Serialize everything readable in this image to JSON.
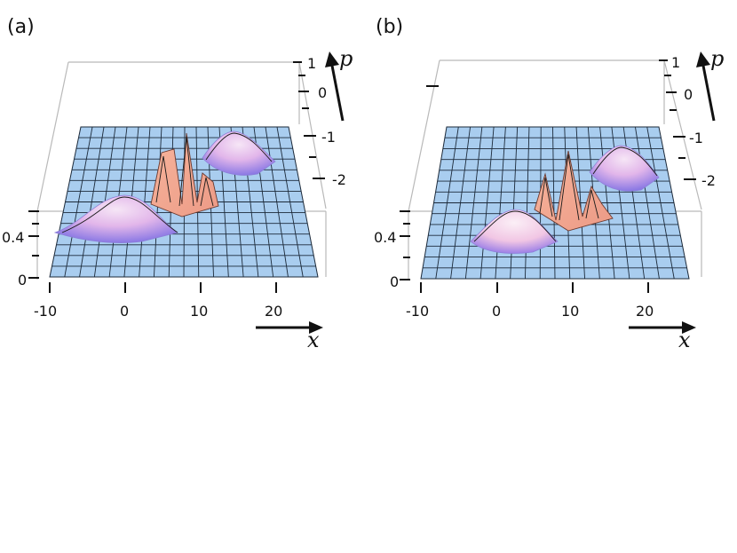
{
  "figure": {
    "panels": [
      {
        "label": "(a)",
        "p_axis_var": "p",
        "x_axis_var": "x",
        "x_ticks": [
          "-10",
          "0",
          "10",
          "20"
        ],
        "p_ticks": [
          "1",
          "0",
          "-1",
          "-2"
        ],
        "z_ticks": [
          "0.4",
          "0"
        ]
      },
      {
        "label": "(b)",
        "p_axis_var": "p",
        "x_axis_var": "x",
        "x_ticks": [
          "-10",
          "0",
          "10",
          "20"
        ],
        "p_ticks": [
          "1",
          "0",
          "-1",
          "-2"
        ],
        "z_ticks": [
          "0.4",
          "0"
        ]
      }
    ]
  },
  "colors": {
    "surface_base": "#a9cdef",
    "grid": "#1c2a3a",
    "peak_orange": "#f2a088",
    "peak_pink": "#f4c8e6",
    "peak_purple": "#a890e8",
    "box": "#b9b9b9"
  },
  "chart_data": [
    {
      "type": "surface3d",
      "title": "(a)",
      "xlabel": "x",
      "ylabel": "p",
      "xlim": [
        -10,
        25
      ],
      "ylim": [
        -2.5,
        1
      ],
      "zlim": [
        0,
        0.8
      ],
      "x_ticks": [
        -10,
        0,
        10,
        20
      ],
      "y_ticks": [
        1,
        0,
        -1,
        -2
      ],
      "z_ticks": [
        0,
        0.4
      ],
      "features": [
        {
          "name": "lobe",
          "x": 0,
          "p": -1.7,
          "height": 0.32,
          "color": "purple"
        },
        {
          "name": "lobe",
          "x": 13,
          "p": 0.3,
          "height": 0.32,
          "color": "purple"
        },
        {
          "name": "interference",
          "x": 6,
          "p": -0.6,
          "height": 0.75,
          "color": "orange"
        }
      ]
    },
    {
      "type": "surface3d",
      "title": "(b)",
      "xlabel": "x",
      "ylabel": "p",
      "xlim": [
        -10,
        25
      ],
      "ylim": [
        -2.5,
        1
      ],
      "zlim": [
        0,
        0.8
      ],
      "x_ticks": [
        -10,
        0,
        10,
        20
      ],
      "y_ticks": [
        1,
        0,
        -1,
        -2
      ],
      "z_ticks": [
        0,
        0.4
      ],
      "features": [
        {
          "name": "lobe",
          "x": 3,
          "p": -1.7,
          "height": 0.32,
          "color": "pink"
        },
        {
          "name": "lobe",
          "x": 16,
          "p": 0.3,
          "height": 0.32,
          "color": "purple"
        },
        {
          "name": "interference",
          "x": 11,
          "p": -0.6,
          "height": 0.6,
          "color": "orange"
        }
      ]
    }
  ]
}
